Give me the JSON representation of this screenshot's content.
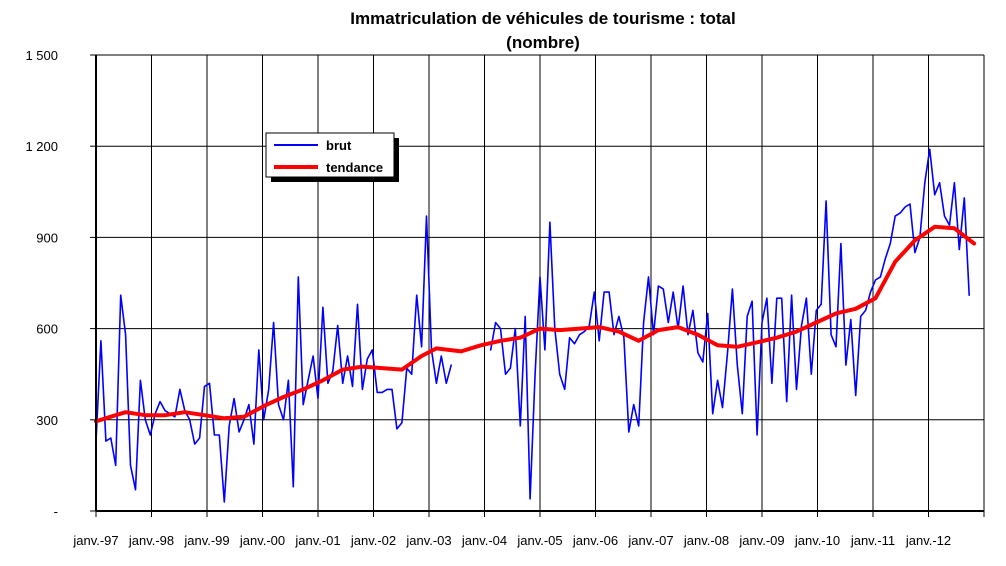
{
  "chart_data": {
    "type": "line",
    "title": "Immatriculation de véhicules de tourisme : total",
    "subtitle": "(nombre)",
    "xlabel": "",
    "ylabel": "",
    "x_tick_labels": [
      "janv.-97",
      "janv.-98",
      "janv.-99",
      "janv.-00",
      "janv.-01",
      "janv.-02",
      "janv.-03",
      "janv.-04",
      "janv.-05",
      "janv.-06",
      "janv.-07",
      "janv.-08",
      "janv.-09",
      "janv.-10",
      "janv.-11",
      "janv.-12"
    ],
    "y_tick_labels": [
      "-",
      "300",
      "600",
      "900",
      "1 200",
      "1 500"
    ],
    "yticks": [
      0,
      300,
      600,
      900,
      1200,
      1500
    ],
    "ylim": [
      0,
      1500
    ],
    "xlim": [
      0,
      180
    ],
    "grid": true,
    "legend": "upper-left",
    "series": [
      {
        "name": "brut",
        "color": "#0000ff",
        "points": [
          [
            0,
            230
          ],
          [
            1,
            560
          ],
          [
            2,
            230
          ],
          [
            3,
            240
          ],
          [
            4,
            150
          ],
          [
            5,
            710
          ],
          [
            6,
            580
          ],
          [
            7,
            150
          ],
          [
            8,
            70
          ],
          [
            9,
            430
          ],
          [
            10,
            300
          ],
          [
            11,
            250
          ],
          [
            12,
            320
          ],
          [
            13,
            360
          ],
          [
            14,
            330
          ],
          [
            15,
            320
          ],
          [
            16,
            310
          ],
          [
            17,
            400
          ],
          [
            18,
            330
          ],
          [
            19,
            300
          ],
          [
            20,
            220
          ],
          [
            21,
            240
          ],
          [
            22,
            410
          ],
          [
            23,
            420
          ],
          [
            24,
            250
          ],
          [
            25,
            250
          ],
          [
            26,
            30
          ],
          [
            27,
            280
          ],
          [
            28,
            370
          ],
          [
            29,
            260
          ],
          [
            30,
            300
          ],
          [
            31,
            350
          ],
          [
            32,
            220
          ],
          [
            33,
            530
          ],
          [
            34,
            300
          ],
          [
            35,
            400
          ],
          [
            36,
            620
          ],
          [
            37,
            350
          ],
          [
            38,
            300
          ],
          [
            39,
            430
          ],
          [
            40,
            80
          ],
          [
            41,
            770
          ],
          [
            42,
            350
          ],
          [
            43,
            430
          ],
          [
            44,
            510
          ],
          [
            45,
            370
          ],
          [
            46,
            670
          ],
          [
            47,
            420
          ],
          [
            48,
            460
          ],
          [
            49,
            610
          ],
          [
            50,
            420
          ],
          [
            51,
            510
          ],
          [
            52,
            410
          ],
          [
            53,
            680
          ],
          [
            54,
            400
          ],
          [
            55,
            500
          ],
          [
            56,
            530
          ],
          [
            57,
            390
          ],
          [
            58,
            390
          ],
          [
            59,
            400
          ],
          [
            60,
            400
          ],
          [
            61,
            270
          ],
          [
            62,
            290
          ],
          [
            63,
            470
          ],
          [
            64,
            450
          ],
          [
            65,
            710
          ],
          [
            66,
            540
          ],
          [
            67,
            970
          ],
          [
            68,
            530
          ],
          [
            69,
            420
          ],
          [
            70,
            510
          ],
          [
            71,
            420
          ],
          [
            72,
            480
          ],
          [
            null,
            null
          ],
          [
            80,
            530
          ],
          [
            81,
            620
          ],
          [
            82,
            600
          ],
          [
            83,
            450
          ],
          [
            84,
            470
          ],
          [
            85,
            600
          ],
          [
            86,
            280
          ],
          [
            87,
            640
          ],
          [
            88,
            40
          ],
          [
            89,
            450
          ],
          [
            90,
            770
          ],
          [
            91,
            530
          ],
          [
            92,
            950
          ],
          [
            93,
            600
          ],
          [
            94,
            450
          ],
          [
            95,
            400
          ],
          [
            96,
            570
          ],
          [
            97,
            550
          ],
          [
            98,
            580
          ],
          [
            99,
            590
          ],
          [
            100,
            610
          ],
          [
            101,
            720
          ],
          [
            102,
            560
          ],
          [
            103,
            720
          ],
          [
            104,
            720
          ],
          [
            105,
            580
          ],
          [
            106,
            640
          ],
          [
            107,
            570
          ],
          [
            108,
            260
          ],
          [
            109,
            350
          ],
          [
            110,
            280
          ],
          [
            111,
            620
          ],
          [
            112,
            770
          ],
          [
            113,
            580
          ],
          [
            114,
            740
          ],
          [
            115,
            730
          ],
          [
            116,
            620
          ],
          [
            117,
            720
          ],
          [
            118,
            600
          ],
          [
            119,
            740
          ],
          [
            120,
            580
          ],
          [
            121,
            660
          ],
          [
            122,
            520
          ],
          [
            123,
            490
          ],
          [
            124,
            650
          ],
          [
            125,
            320
          ],
          [
            126,
            430
          ],
          [
            127,
            340
          ],
          [
            128,
            520
          ],
          [
            129,
            730
          ],
          [
            130,
            480
          ],
          [
            131,
            320
          ],
          [
            132,
            640
          ],
          [
            133,
            690
          ],
          [
            134,
            250
          ],
          [
            135,
            620
          ],
          [
            136,
            700
          ],
          [
            137,
            420
          ],
          [
            138,
            700
          ],
          [
            139,
            700
          ],
          [
            140,
            360
          ],
          [
            141,
            710
          ],
          [
            142,
            400
          ],
          [
            143,
            610
          ],
          [
            144,
            700
          ],
          [
            145,
            450
          ],
          [
            146,
            660
          ],
          [
            147,
            680
          ],
          [
            148,
            1020
          ],
          [
            149,
            580
          ],
          [
            150,
            540
          ],
          [
            151,
            880
          ],
          [
            152,
            480
          ],
          [
            153,
            630
          ],
          [
            154,
            380
          ],
          [
            155,
            640
          ],
          [
            156,
            660
          ],
          [
            157,
            720
          ],
          [
            158,
            760
          ],
          [
            159,
            770
          ],
          [
            160,
            830
          ],
          [
            161,
            880
          ],
          [
            162,
            970
          ],
          [
            163,
            980
          ],
          [
            164,
            1000
          ],
          [
            165,
            1010
          ],
          [
            166,
            850
          ],
          [
            167,
            900
          ],
          [
            168,
            1080
          ],
          [
            169,
            1190
          ],
          [
            170,
            1040
          ],
          [
            171,
            1080
          ],
          [
            172,
            970
          ],
          [
            173,
            940
          ],
          [
            174,
            1080
          ],
          [
            175,
            860
          ],
          [
            176,
            1030
          ],
          [
            177,
            710
          ]
        ]
      },
      {
        "name": "tendance",
        "color": "#ff0000",
        "points": [
          [
            0,
            295
          ],
          [
            4,
            315
          ],
          [
            6,
            325
          ],
          [
            10,
            315
          ],
          [
            14,
            315
          ],
          [
            18,
            325
          ],
          [
            22,
            315
          ],
          [
            26,
            305
          ],
          [
            30,
            310
          ],
          [
            34,
            345
          ],
          [
            38,
            375
          ],
          [
            42,
            400
          ],
          [
            46,
            430
          ],
          [
            50,
            465
          ],
          [
            54,
            475
          ],
          [
            58,
            470
          ],
          [
            62,
            465
          ],
          [
            66,
            510
          ],
          [
            69,
            535
          ],
          [
            74,
            525
          ],
          [
            78,
            545
          ],
          [
            82,
            560
          ],
          [
            86,
            570
          ],
          [
            90,
            600
          ],
          [
            94,
            595
          ],
          [
            98,
            600
          ],
          [
            102,
            605
          ],
          [
            106,
            590
          ],
          [
            110,
            560
          ],
          [
            114,
            595
          ],
          [
            118,
            605
          ],
          [
            122,
            580
          ],
          [
            126,
            545
          ],
          [
            130,
            540
          ],
          [
            134,
            555
          ],
          [
            138,
            570
          ],
          [
            142,
            590
          ],
          [
            146,
            620
          ],
          [
            150,
            650
          ],
          [
            154,
            665
          ],
          [
            158,
            700
          ],
          [
            162,
            820
          ],
          [
            166,
            890
          ],
          [
            170,
            935
          ],
          [
            174,
            930
          ],
          [
            178,
            880
          ]
        ]
      }
    ]
  }
}
